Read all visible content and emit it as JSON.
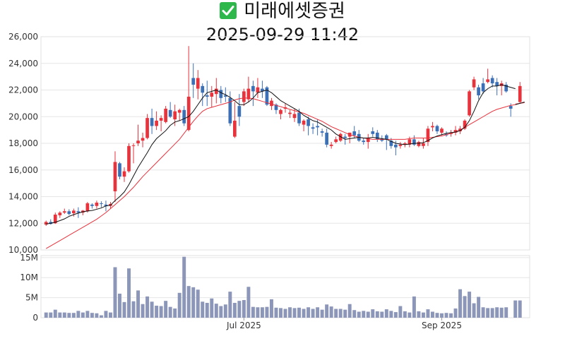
{
  "header": {
    "icon": "check-mark-icon",
    "stock_name": "미래에셋증권",
    "timestamp": "2025-09-29 11:42"
  },
  "colors": {
    "up": "#e8323c",
    "down": "#3b6fb6",
    "ma_short": "#111111",
    "ma_long": "#e8323c",
    "volume": "#8c96b8",
    "grid": "#e6e6e6"
  },
  "chart_data": [
    {
      "type": "candlestick",
      "title": "",
      "ylim": [
        10000,
        26000
      ],
      "y_ticks": [
        "10,000",
        "12,000",
        "14,000",
        "16,000",
        "18,000",
        "20,000",
        "22,000",
        "24,000",
        "26,000"
      ],
      "y_tick_values": [
        10000,
        12000,
        14000,
        16000,
        18000,
        20000,
        22000,
        24000,
        26000
      ],
      "x_ticks": [
        {
          "label": "Jul 2025",
          "index": 43
        },
        {
          "label": "Sep 2025",
          "index": 86
        }
      ],
      "grid": true,
      "ohlc": [
        [
          11900,
          12200,
          11800,
          12100
        ],
        [
          12100,
          12300,
          11900,
          11950
        ],
        [
          12000,
          12800,
          11950,
          12650
        ],
        [
          12600,
          12900,
          12400,
          12800
        ],
        [
          12800,
          13100,
          12700,
          12900
        ],
        [
          12900,
          13050,
          12600,
          12700
        ],
        [
          12750,
          13100,
          12500,
          12950
        ],
        [
          12900,
          13200,
          12400,
          12800
        ],
        [
          12800,
          13000,
          12600,
          12950
        ],
        [
          12900,
          13600,
          12800,
          13500
        ],
        [
          13400,
          13500,
          13100,
          13300
        ],
        [
          13300,
          13700,
          13100,
          13550
        ],
        [
          13500,
          13650,
          13200,
          13450
        ],
        [
          13400,
          13700,
          12900,
          13300
        ],
        [
          13300,
          13600,
          13100,
          13450
        ],
        [
          14400,
          17400,
          13600,
          16600
        ],
        [
          16500,
          16600,
          15300,
          15500
        ],
        [
          15500,
          16200,
          15100,
          15900
        ],
        [
          15900,
          18000,
          15800,
          17800
        ],
        [
          17800,
          18000,
          16500,
          17850
        ],
        [
          18000,
          19400,
          17800,
          18200
        ],
        [
          18200,
          18800,
          17700,
          18400
        ],
        [
          18400,
          20200,
          18300,
          19900
        ],
        [
          19900,
          20600,
          18700,
          19300
        ],
        [
          19300,
          20400,
          19000,
          19700
        ],
        [
          19700,
          20100,
          18900,
          19900
        ],
        [
          19600,
          20800,
          19500,
          20600
        ],
        [
          20500,
          21100,
          19900,
          20000
        ],
        [
          19800,
          20900,
          19300,
          20400
        ],
        [
          20300,
          20600,
          19700,
          20500
        ],
        [
          20500,
          20800,
          19300,
          19500
        ],
        [
          19000,
          25300,
          18900,
          21500
        ],
        [
          22900,
          24000,
          21400,
          22400
        ],
        [
          22100,
          23500,
          21300,
          22900
        ],
        [
          22300,
          22500,
          20800,
          21800
        ],
        [
          21600,
          22700,
          20800,
          21500
        ],
        [
          21500,
          22300,
          20700,
          21800
        ],
        [
          21700,
          22900,
          21000,
          22100
        ],
        [
          22000,
          22300,
          21000,
          21400
        ],
        [
          21600,
          22200,
          21100,
          21500
        ],
        [
          21400,
          21900,
          19300,
          19500
        ],
        [
          18500,
          21100,
          18400,
          19700
        ],
        [
          20800,
          21700,
          19300,
          20000
        ],
        [
          21100,
          22100,
          20800,
          21900
        ],
        [
          21300,
          23000,
          21100,
          22100
        ],
        [
          22300,
          22700,
          20800,
          21900
        ],
        [
          21800,
          22900,
          21400,
          22200
        ],
        [
          22100,
          22700,
          21400,
          21900
        ],
        [
          22200,
          22300,
          20800,
          20900
        ],
        [
          20800,
          21400,
          20500,
          21200
        ],
        [
          20900,
          21000,
          20200,
          20500
        ],
        [
          20200,
          20600,
          19800,
          20500
        ],
        [
          20600,
          21000,
          20300,
          20700
        ],
        [
          20200,
          20500,
          19900,
          20300
        ],
        [
          19900,
          20600,
          19600,
          20200
        ],
        [
          20300,
          20600,
          19300,
          19500
        ],
        [
          19400,
          19800,
          18900,
          19700
        ],
        [
          19800,
          20000,
          18600,
          19300
        ],
        [
          19200,
          19500,
          18700,
          19100
        ],
        [
          19300,
          19800,
          18600,
          19200
        ],
        [
          18900,
          19100,
          18500,
          18800
        ],
        [
          18800,
          19100,
          17700,
          17900
        ],
        [
          17800,
          18100,
          17600,
          17900
        ],
        [
          18100,
          18500,
          18000,
          18300
        ],
        [
          18200,
          18800,
          18100,
          18700
        ],
        [
          18500,
          18700,
          17900,
          18400
        ],
        [
          18500,
          18800,
          18000,
          18800
        ],
        [
          18900,
          19300,
          18400,
          18600
        ],
        [
          18700,
          19000,
          18100,
          18200
        ],
        [
          18200,
          18400,
          17900,
          18100
        ],
        [
          18100,
          18700,
          17600,
          18400
        ],
        [
          18900,
          19200,
          18500,
          18700
        ],
        [
          18800,
          19000,
          18100,
          18300
        ],
        [
          18300,
          18600,
          18100,
          18200
        ],
        [
          18600,
          18700,
          17500,
          18300
        ],
        [
          18200,
          18400,
          17600,
          17800
        ],
        [
          17900,
          18200,
          17100,
          17700
        ],
        [
          17800,
          18100,
          17600,
          17900
        ],
        [
          17900,
          18100,
          17700,
          18000
        ],
        [
          17900,
          18500,
          17700,
          18300
        ],
        [
          18300,
          18600,
          17800,
          17900
        ],
        [
          17800,
          18200,
          17700,
          18100
        ],
        [
          17800,
          18400,
          17600,
          18000
        ],
        [
          18100,
          19300,
          17800,
          19100
        ],
        [
          19200,
          19600,
          18900,
          19300
        ],
        [
          19300,
          19400,
          18700,
          18900
        ],
        [
          18800,
          19200,
          18600,
          19100
        ],
        [
          18700,
          18900,
          18500,
          18600
        ],
        [
          18700,
          19000,
          18500,
          18800
        ],
        [
          18800,
          19300,
          18600,
          19000
        ],
        [
          18900,
          19300,
          18700,
          19100
        ],
        [
          19100,
          19800,
          19000,
          19700
        ],
        [
          20100,
          22000,
          20000,
          21900
        ],
        [
          22200,
          23000,
          22000,
          22800
        ],
        [
          22200,
          22400,
          21300,
          21600
        ],
        [
          22500,
          22900,
          21700,
          21900
        ],
        [
          22600,
          23600,
          22500,
          22800
        ],
        [
          22900,
          23100,
          22200,
          22500
        ],
        [
          22600,
          22900,
          21600,
          22300
        ],
        [
          22300,
          22700,
          21600,
          22500
        ],
        [
          22400,
          22600,
          21800,
          21900
        ],
        [
          20800,
          21000,
          20000,
          20600
        ]
      ],
      "last_candle": [
        21100,
        22600,
        21000,
        22300
      ],
      "ma_short": {
        "name": "",
        "values": [
          11950,
          12000,
          12080,
          12200,
          12330,
          12520,
          12650,
          12760,
          12860,
          12920,
          12960,
          13050,
          13150,
          13300,
          13360,
          13700,
          14000,
          14350,
          14900,
          15550,
          16200,
          16750,
          17300,
          17900,
          18350,
          18650,
          18950,
          19350,
          19600,
          19700,
          19850,
          20000,
          20400,
          20900,
          21400,
          21800,
          21900,
          22000,
          21800,
          21650,
          21450,
          21200,
          20900,
          20900,
          21100,
          21400,
          21800,
          21900,
          22000,
          21800,
          21500,
          21200,
          21000,
          20800,
          20600,
          20400,
          20100,
          19900,
          19700,
          19600,
          19400,
          19200,
          19000,
          18700,
          18500,
          18300,
          18350,
          18400,
          18450,
          18400,
          18400,
          18450,
          18400,
          18350,
          18300,
          18150,
          18000,
          17950,
          17900,
          17950,
          18000,
          18000,
          18050,
          18200,
          18400,
          18550,
          18650,
          18750,
          18800,
          18850,
          18950,
          19200,
          19700,
          20400,
          21200,
          21800,
          22100,
          22300,
          22300,
          22400,
          22300,
          22200,
          22100
        ],
        "tail": [
          20900,
          21100
        ]
      },
      "ma_long": {
        "name": "",
        "values": [
          10100,
          10300,
          10500,
          10700,
          10900,
          11100,
          11300,
          11500,
          11700,
          11900,
          12100,
          12300,
          12550,
          12800,
          13100,
          13400,
          13700,
          14000,
          14350,
          14700,
          15100,
          15500,
          15850,
          16200,
          16550,
          16900,
          17250,
          17600,
          17950,
          18300,
          18750,
          19200,
          19650,
          20050,
          20400,
          20600,
          20700,
          20800,
          20900,
          21000,
          21100,
          21250,
          21350,
          21400,
          21400,
          21350,
          21250,
          21150,
          21050,
          20950,
          20850,
          20750,
          20650,
          20550,
          20450,
          20350,
          20250,
          20100,
          19950,
          19800,
          19650,
          19450,
          19250,
          19100,
          18950,
          18800,
          18650,
          18550,
          18450,
          18400,
          18350,
          18300,
          18300,
          18300,
          18300,
          18300,
          18300,
          18300,
          18300,
          18350,
          18400,
          18400,
          18400,
          18400,
          18450,
          18500,
          18550,
          18650,
          18750,
          18850,
          19000,
          19200,
          19400,
          19600,
          19800,
          20000,
          20200,
          20400,
          20550,
          20650,
          20750,
          20850,
          20900
        ],
        "tail": [
          20950,
          21050
        ]
      },
      "gap_after_index": 100
    },
    {
      "type": "bar",
      "title": "",
      "ylabel": "",
      "ylim": [
        0,
        15500000
      ],
      "y_ticks": [
        "0",
        "5M",
        "10M",
        "15M"
      ],
      "y_tick_values": [
        0,
        5000000,
        10000000,
        15000000
      ],
      "values": [
        1300000,
        1300000,
        2000000,
        1300000,
        1300000,
        1200000,
        1200000,
        1700000,
        1300000,
        1700000,
        1200000,
        1100000,
        600000,
        1700000,
        1300000,
        12600000,
        6000000,
        3900000,
        12300000,
        4100000,
        6800000,
        3400000,
        5300000,
        4000000,
        3000000,
        2900000,
        4200000,
        2700000,
        2300000,
        6200000,
        15200000,
        7900000,
        7600000,
        7000000,
        4000000,
        3700000,
        4800000,
        3500000,
        2900000,
        3300000,
        6500000,
        3700000,
        4200000,
        4400000,
        7700000,
        2700000,
        2600000,
        2600000,
        2700000,
        4600000,
        2500000,
        2400000,
        2200000,
        2600000,
        2400000,
        2500000,
        2200000,
        2600000,
        2200000,
        2600000,
        2000000,
        3300000,
        2800000,
        2200000,
        2200000,
        2000000,
        3400000,
        1900000,
        1500000,
        1700000,
        1500000,
        2100000,
        1600000,
        1500000,
        2100000,
        1700000,
        1400000,
        2900000,
        1600000,
        1300000,
        5300000,
        1600000,
        1300000,
        2100000,
        1500000,
        1200000,
        1100000,
        1200000,
        1100000,
        2300000,
        7100000,
        5400000,
        6500000,
        3600000,
        5200000,
        2600000,
        2400000,
        2400000,
        2600000,
        2500000,
        2600000,
        4300000,
        4300000
      ]
    }
  ]
}
